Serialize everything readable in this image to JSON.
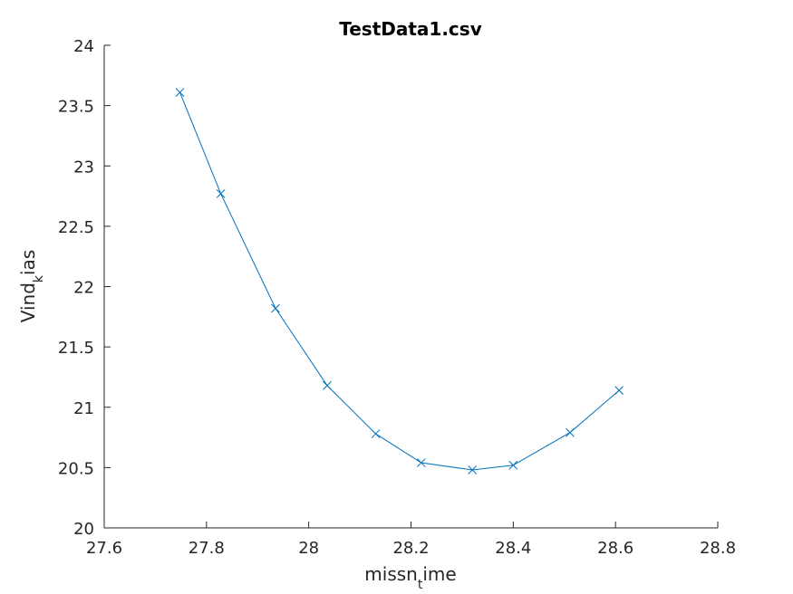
{
  "chart_data": {
    "type": "line",
    "title": "TestData1.csv",
    "xlabel": {
      "base": "missn",
      "sub": "t",
      "rest": "ime"
    },
    "ylabel": {
      "base": "Vind",
      "sub": "k",
      "rest": "ias"
    },
    "xlim": [
      27.6,
      28.8
    ],
    "ylim": [
      20,
      24
    ],
    "xticks": [
      27.6,
      27.8,
      28,
      28.2,
      28.4,
      28.6,
      28.8
    ],
    "xtick_labels": [
      "27.6",
      "27.8",
      "28",
      "28.2",
      "28.4",
      "28.6",
      "28.8"
    ],
    "yticks": [
      20,
      20.5,
      21,
      21.5,
      22,
      22.5,
      23,
      23.5,
      24
    ],
    "ytick_labels": [
      "20",
      "20.5",
      "21",
      "21.5",
      "22",
      "22.5",
      "23",
      "23.5",
      "24"
    ],
    "grid": false,
    "series": [
      {
        "marker": "x",
        "color": "#0072bd",
        "x": [
          27.748,
          27.828,
          27.935,
          28.036,
          28.131,
          28.22,
          28.32,
          28.4,
          28.511,
          28.607
        ],
        "y": [
          23.61,
          22.77,
          21.82,
          21.18,
          20.78,
          20.54,
          20.48,
          20.52,
          20.79,
          21.14
        ]
      }
    ]
  }
}
